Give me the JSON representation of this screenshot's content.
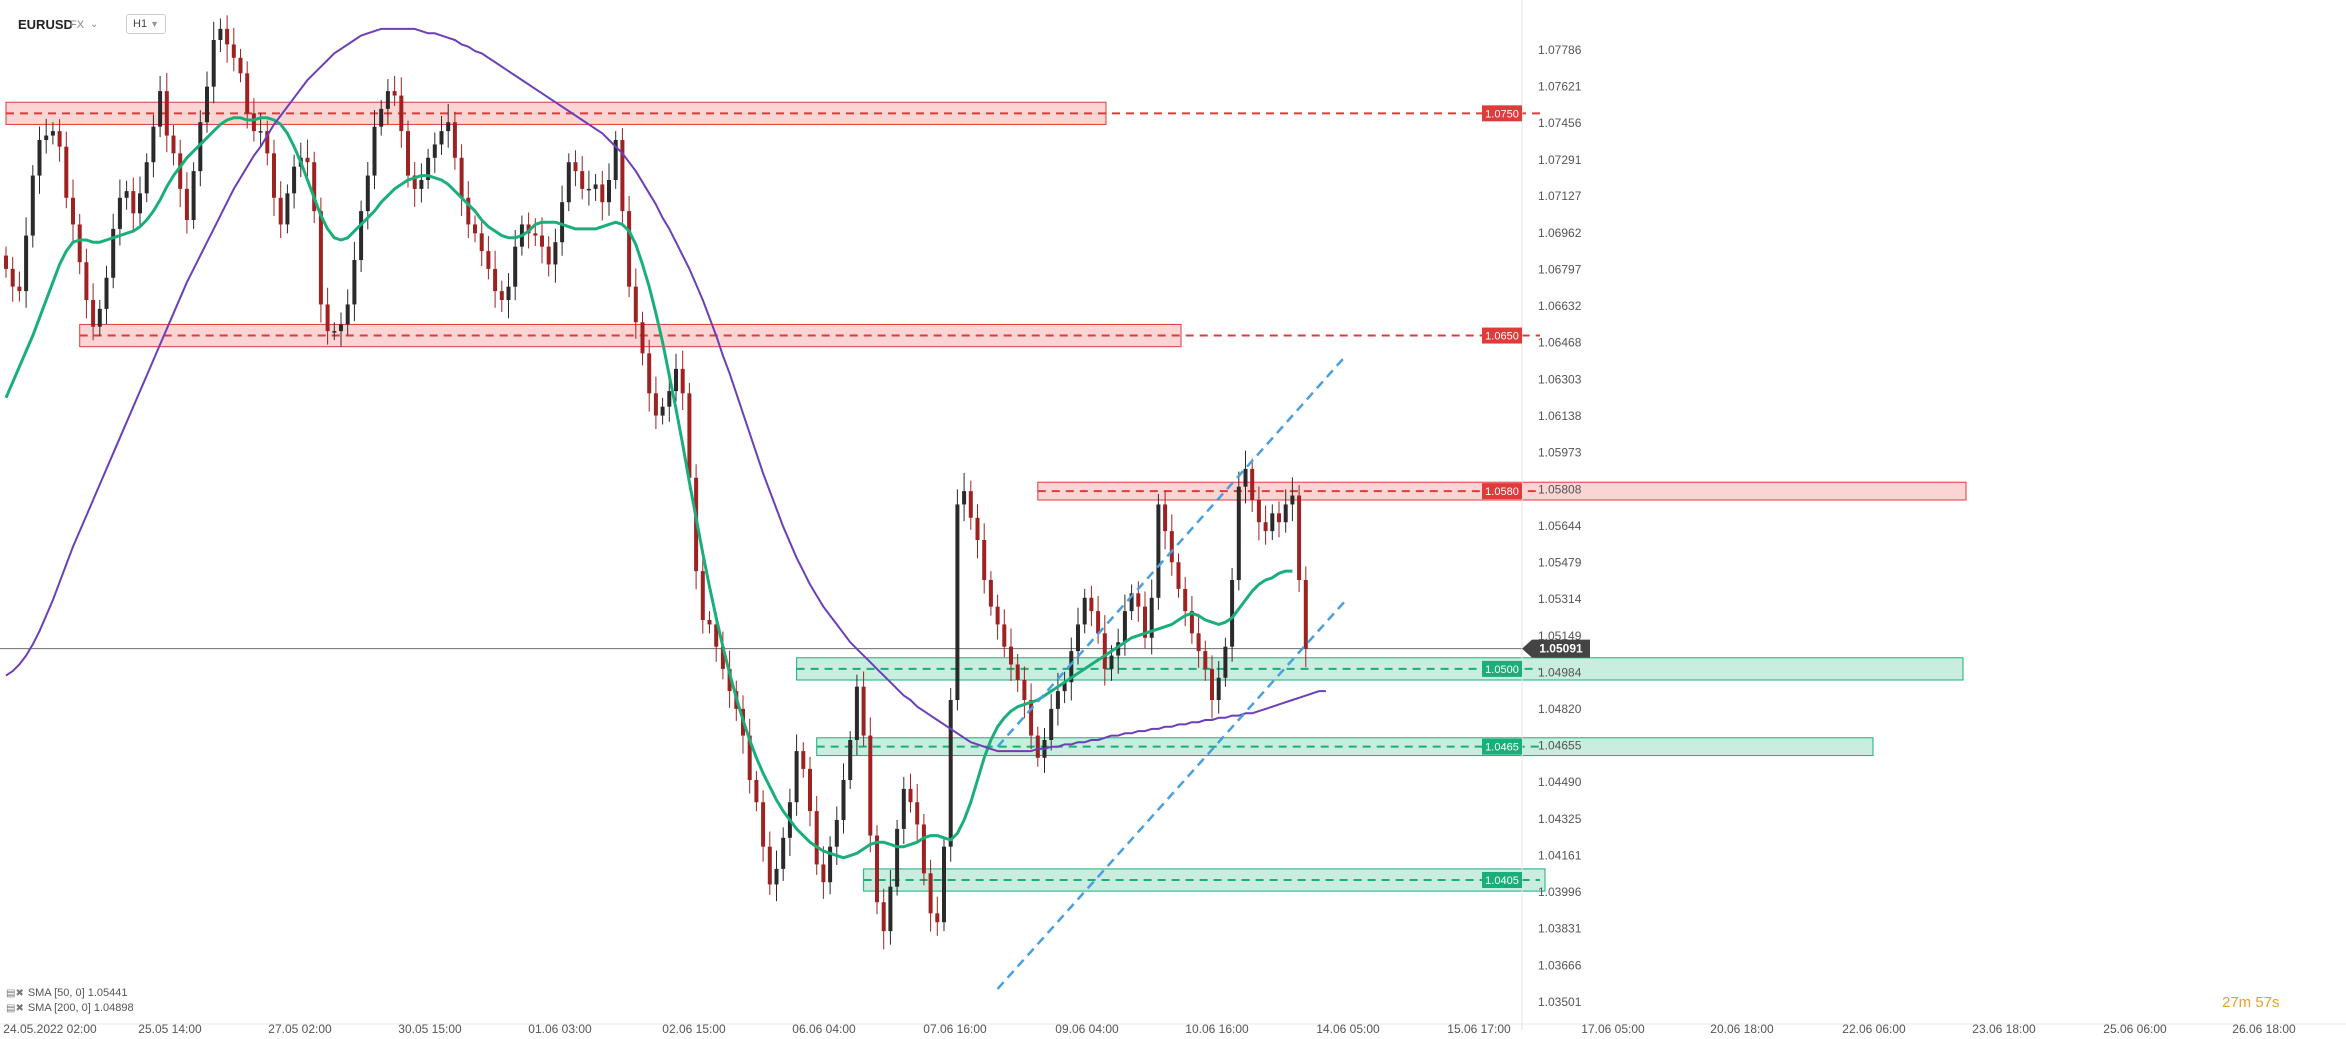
{
  "header": {
    "symbol": "EURUSD",
    "type": "FX",
    "timeframe": "H1"
  },
  "indicators": [
    {
      "label": "SMA [50, 0] 1.05441",
      "color": "#1aaf7a"
    },
    {
      "label": "SMA [200, 0] 1.04898",
      "color": "#6a3fb8"
    }
  ],
  "timer": "27m 57s",
  "chart_data": {
    "type": "candlestick",
    "symbol": "EURUSD",
    "price_ticks": [
      "1.07786",
      "1.07621",
      "1.07456",
      "1.07291",
      "1.07127",
      "1.06962",
      "1.06797",
      "1.06632",
      "1.06468",
      "1.06303",
      "1.06138",
      "1.05973",
      "1.05808",
      "1.05644",
      "1.05479",
      "1.05314",
      "1.05149",
      "1.04984",
      "1.04820",
      "1.04655",
      "1.04490",
      "1.04325",
      "1.04161",
      "1.03996",
      "1.03831",
      "1.03666",
      "1.03501"
    ],
    "time_ticks": [
      "24.05.2022 02:00",
      "25.05 14:00",
      "27.05 02:00",
      "30.05 15:00",
      "01.06 03:00",
      "02.06 15:00",
      "06.06 04:00",
      "07.06 16:00",
      "09.06 04:00",
      "10.06 16:00",
      "14.06 05:00",
      "15.06 17:00",
      "17.06 05:00",
      "20.06 18:00",
      "22.06 06:00",
      "23.06 18:00",
      "25.06 06:00",
      "26.06 18:00"
    ],
    "ylim": [
      1.0342,
      1.0792
    ],
    "current_price": {
      "value": 1.05091,
      "label": "1.05091",
      "color": "#444444"
    },
    "levels": [
      {
        "value": 1.075,
        "label": "1.0750",
        "color": "#e03b3b",
        "zone": [
          1.0745,
          1.0755
        ],
        "zone_start_index": 0
      },
      {
        "value": 1.065,
        "label": "1.0650",
        "color": "#e03b3b",
        "zone": [
          1.0645,
          1.0655
        ],
        "zone_start_index": 11
      },
      {
        "value": 1.058,
        "label": "1.0580",
        "color": "#e03b3b",
        "zone": [
          1.0576,
          1.0584
        ],
        "zone_start_index": 154
      },
      {
        "value": 1.05,
        "label": "1.0500",
        "color": "#1aaf7a",
        "zone": [
          1.0495,
          1.0505
        ],
        "zone_start_index": 118
      },
      {
        "value": 1.0465,
        "label": "1.0465",
        "color": "#1aaf7a",
        "zone": [
          1.0461,
          1.0469
        ],
        "zone_start_index": 121
      },
      {
        "value": 1.0405,
        "label": "1.0405",
        "color": "#1aaf7a",
        "zone": [
          1.04,
          1.041
        ],
        "zone_start_index": 128
      }
    ],
    "channel": {
      "color": "#4a9fe0",
      "upper": [
        [
          148,
          1.0465
        ],
        [
          200,
          1.0641
        ]
      ],
      "lower": [
        [
          148,
          1.0356
        ],
        [
          200,
          1.0531
        ]
      ]
    },
    "sma50_color": "#1aaf7a",
    "sma200_color": "#6a3fb8",
    "candle_colors": {
      "up": "#2a2a2a",
      "down": "#9e2222"
    },
    "closes": [
      1.068,
      1.0672,
      1.067,
      1.0695,
      1.0722,
      1.0738,
      1.074,
      1.0742,
      1.0735,
      1.0712,
      1.07,
      1.0683,
      1.0666,
      1.0654,
      1.0662,
      1.0676,
      1.0698,
      1.0712,
      1.0715,
      1.0705,
      1.0714,
      1.0728,
      1.0744,
      1.076,
      1.074,
      1.0732,
      1.0716,
      1.0702,
      1.0724,
      1.0746,
      1.0762,
      1.0783,
      1.0788,
      1.0781,
      1.0775,
      1.0768,
      1.075,
      1.0742,
      1.0742,
      1.0732,
      1.0712,
      1.07,
      1.0714,
      1.0726,
      1.073,
      1.0728,
      1.0706,
      1.0664,
      1.0652,
      1.0652,
      1.0655,
      1.0664,
      1.0684,
      1.0706,
      1.0722,
      1.0744,
      1.0752,
      1.076,
      1.0758,
      1.0742,
      1.0722,
      1.0716,
      1.072,
      1.073,
      1.0736,
      1.0742,
      1.0746,
      1.073,
      1.0712,
      1.07,
      1.0696,
      1.0688,
      1.068,
      1.067,
      1.0666,
      1.0672,
      1.069,
      1.07,
      1.0696,
      1.0695,
      1.069,
      1.0682,
      1.0692,
      1.071,
      1.0728,
      1.0724,
      1.0716,
      1.0716,
      1.0718,
      1.071,
      1.072,
      1.0738,
      1.0706,
      1.0672,
      1.0656,
      1.0642,
      1.0624,
      1.0614,
      1.0618,
      1.0625,
      1.0635,
      1.0624,
      1.0586,
      1.0544,
      1.0522,
      1.052,
      1.051,
      1.05,
      1.049,
      1.0482,
      1.047,
      1.045,
      1.044,
      1.042,
      1.0403,
      1.041,
      1.0424,
      1.044,
      1.0463,
      1.0455,
      1.0436,
      1.0412,
      1.0404,
      1.042,
      1.0432,
      1.045,
      1.0468,
      1.0492,
      1.047,
      1.0425,
      1.0395,
      1.0382,
      1.0402,
      1.0428,
      1.0446,
      1.044,
      1.043,
      1.0408,
      1.039,
      1.0386,
      1.042,
      1.0486,
      1.0574,
      1.058,
      1.0568,
      1.0558,
      1.054,
      1.0528,
      1.052,
      1.051,
      1.0502,
      1.0495,
      1.0486,
      1.047,
      1.046,
      1.0468,
      1.0482,
      1.049,
      1.0494,
      1.0508,
      1.052,
      1.0532,
      1.0526,
      1.0516,
      1.05,
      1.0506,
      1.0512,
      1.0526,
      1.0534,
      1.0528,
      1.0514,
      1.0532,
      1.0574,
      1.0562,
      1.0548,
      1.0536,
      1.0526,
      1.0516,
      1.0508,
      1.05,
      1.0486,
      1.0496,
      1.051,
      1.054,
      1.0582,
      1.059,
      1.0576,
      1.0566,
      1.0562,
      1.057,
      1.0566,
      1.0574,
      1.0578,
      1.054,
      1.0509
    ],
    "series": [
      {
        "name": "SMA [50, 0] 1.05441",
        "values": [
          1.0622,
          1.0629,
          1.0636,
          1.0643,
          1.065,
          1.0658,
          1.0666,
          1.0674,
          1.0682,
          1.0688,
          1.0692,
          1.0693,
          1.0693,
          1.0692,
          1.0692,
          1.0693,
          1.0694,
          1.0695,
          1.0696,
          1.0697,
          1.0699,
          1.0702,
          1.0706,
          1.0711,
          1.0717,
          1.0722,
          1.0726,
          1.073,
          1.0733,
          1.0736,
          1.0739,
          1.0742,
          1.0745,
          1.0747,
          1.0748,
          1.0748,
          1.0747,
          1.0747,
          1.0748,
          1.0748,
          1.0747,
          1.0745,
          1.0741,
          1.0735,
          1.0728,
          1.072,
          1.0712,
          1.0704,
          1.0698,
          1.0694,
          1.0693,
          1.0694,
          1.0697,
          1.07,
          1.0703,
          1.0706,
          1.071,
          1.0713,
          1.0716,
          1.0718,
          1.072,
          1.0721,
          1.0722,
          1.0722,
          1.0721,
          1.072,
          1.0718,
          1.0715,
          1.0712,
          1.0709,
          1.0706,
          1.0702,
          1.0699,
          1.0697,
          1.0695,
          1.0694,
          1.0694,
          1.0695,
          1.0697,
          1.07,
          1.0701,
          1.0701,
          1.0701,
          1.07,
          1.0699,
          1.0698,
          1.0698,
          1.0698,
          1.0698,
          1.0699,
          1.07,
          1.0701,
          1.07,
          1.0697,
          1.0691,
          1.0682,
          1.0672,
          1.066,
          1.0647,
          1.0632,
          1.0617,
          1.0601,
          1.0584,
          1.0568,
          1.0552,
          1.0537,
          1.0523,
          1.051,
          1.0498,
          1.0487,
          1.0477,
          1.0468,
          1.046,
          1.0453,
          1.0447,
          1.0441,
          1.0436,
          1.0432,
          1.0428,
          1.0425,
          1.0422,
          1.042,
          1.0418,
          1.0417,
          1.0416,
          1.0415,
          1.0416,
          1.0417,
          1.0419,
          1.0421,
          1.0422,
          1.0422,
          1.0421,
          1.042,
          1.042,
          1.0421,
          1.0422,
          1.0424,
          1.0425,
          1.0425,
          1.0424,
          1.0423,
          1.0426,
          1.0432,
          1.044,
          1.045,
          1.046,
          1.0468,
          1.0474,
          1.0478,
          1.0481,
          1.0483,
          1.0484,
          1.0485,
          1.0486,
          1.0488,
          1.049,
          1.0492,
          1.0494,
          1.0496,
          1.0498,
          1.05,
          1.0502,
          1.0504,
          1.0506,
          1.0508,
          1.051,
          1.0512,
          1.0514,
          1.0515,
          1.0516,
          1.0517,
          1.0518,
          1.0519,
          1.052,
          1.0522,
          1.0524,
          1.0525,
          1.0524,
          1.0522,
          1.0521,
          1.052,
          1.0521,
          1.0523,
          1.0527,
          1.0531,
          1.0535,
          1.0538,
          1.054,
          1.0541,
          1.0543,
          1.0544,
          1.0544
        ]
      },
      {
        "name": "SMA [200, 0] 1.04898",
        "values": [
          1.0497,
          1.0499,
          1.0502,
          1.0506,
          1.0511,
          1.0517,
          1.0524,
          1.0531,
          1.0539,
          1.0547,
          1.0555,
          1.0562,
          1.0569,
          1.0576,
          1.0583,
          1.059,
          1.0597,
          1.0604,
          1.0611,
          1.0618,
          1.0625,
          1.0632,
          1.0639,
          1.0646,
          1.0653,
          1.066,
          1.0667,
          1.0674,
          1.068,
          1.0686,
          1.0692,
          1.0698,
          1.0704,
          1.071,
          1.0716,
          1.0721,
          1.0726,
          1.0731,
          1.0735,
          1.074,
          1.0745,
          1.0749,
          1.0753,
          1.0757,
          1.0761,
          1.0765,
          1.0768,
          1.0771,
          1.0774,
          1.0777,
          1.0779,
          1.0781,
          1.0783,
          1.0785,
          1.0786,
          1.0787,
          1.0788,
          1.0788,
          1.0788,
          1.0788,
          1.0788,
          1.0788,
          1.0787,
          1.0786,
          1.0786,
          1.0785,
          1.0784,
          1.0783,
          1.0781,
          1.078,
          1.0778,
          1.0777,
          1.0775,
          1.0773,
          1.0771,
          1.0769,
          1.0767,
          1.0765,
          1.0763,
          1.0761,
          1.0759,
          1.0757,
          1.0755,
          1.0753,
          1.0751,
          1.0749,
          1.0747,
          1.0745,
          1.0743,
          1.0741,
          1.0738,
          1.0735,
          1.0732,
          1.0728,
          1.0724,
          1.0719,
          1.0714,
          1.0709,
          1.0703,
          1.0698,
          1.0692,
          1.0686,
          1.068,
          1.0673,
          1.0666,
          1.0658,
          1.065,
          1.0641,
          1.0633,
          1.0624,
          1.0615,
          1.0606,
          1.0597,
          1.0588,
          1.058,
          1.0572,
          1.0564,
          1.0557,
          1.055,
          1.0544,
          1.0538,
          1.0533,
          1.0528,
          1.0524,
          1.052,
          1.0516,
          1.0512,
          1.0509,
          1.0506,
          1.0503,
          1.05,
          1.0497,
          1.0494,
          1.0491,
          1.0488,
          1.0486,
          1.0483,
          1.0481,
          1.0479,
          1.0477,
          1.0475,
          1.0473,
          1.0471,
          1.0469,
          1.0467,
          1.0466,
          1.0465,
          1.0464,
          1.0463,
          1.0463,
          1.0463,
          1.0463,
          1.0463,
          1.0463,
          1.0464,
          1.0464,
          1.0465,
          1.0465,
          1.0466,
          1.0466,
          1.0467,
          1.0467,
          1.0468,
          1.0468,
          1.0469,
          1.047,
          1.047,
          1.0471,
          1.0471,
          1.0472,
          1.0472,
          1.0473,
          1.0473,
          1.0474,
          1.0474,
          1.0475,
          1.0475,
          1.0476,
          1.0476,
          1.0477,
          1.0477,
          1.0478,
          1.0478,
          1.0479,
          1.0479,
          1.048,
          1.048,
          1.0481,
          1.0482,
          1.0483,
          1.0484,
          1.0485,
          1.0486,
          1.0487,
          1.0488,
          1.0489,
          1.049,
          1.049
        ]
      }
    ]
  }
}
